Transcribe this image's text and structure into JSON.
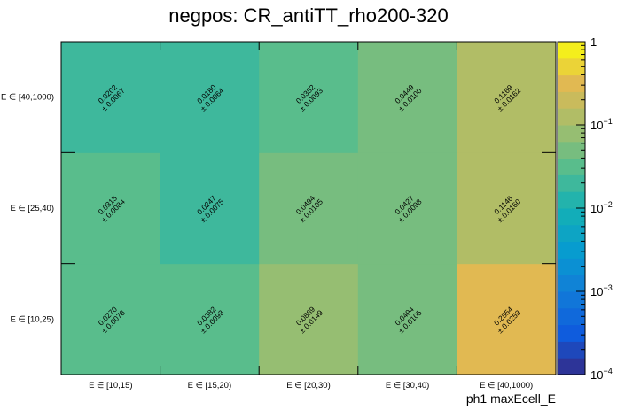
{
  "chart_data": {
    "type": "heatmap",
    "title": "negpos: CR_antiTT_rho200-320",
    "xlabel": "ph1 maxEcell_E",
    "ylabel": "",
    "x_categories": [
      "E ∈ [10,15)",
      "E ∈ [15,20)",
      "E ∈ [20,30)",
      "E ∈ [30,40)",
      "E ∈ [40,1000)"
    ],
    "y_categories": [
      "E ∈ [10,25)",
      "E ∈ [25,40)",
      "E ∈ [40,1000)"
    ],
    "values": [
      [
        0.027,
        0.0382,
        0.0889,
        0.0494,
        0.2854
      ],
      [
        0.0315,
        0.0247,
        0.0494,
        0.0427,
        0.1146
      ],
      [
        0.0202,
        0.018,
        0.0382,
        0.0449,
        0.1169
      ]
    ],
    "errors": [
      [
        0.0078,
        0.0093,
        0.0149,
        0.0105,
        0.0253
      ],
      [
        0.0084,
        0.0075,
        0.0105,
        0.0098,
        0.016
      ],
      [
        0.0067,
        0.0064,
        0.0093,
        0.01,
        0.0162
      ]
    ],
    "value_labels": [
      [
        "0.0270",
        "0.0382",
        "0.0889",
        "0.0494",
        "0.2854"
      ],
      [
        "0.0315",
        "0.0247",
        "0.0494",
        "0.0427",
        "0.1146"
      ],
      [
        "0.0202",
        "0.0180",
        "0.0382",
        "0.0449",
        "0.1169"
      ]
    ],
    "error_labels": [
      [
        "± 0.0078",
        "± 0.0093",
        "± 0.0149",
        "± 0.0105",
        "± 0.0253"
      ],
      [
        "± 0.0084",
        "± 0.0075",
        "± 0.0105",
        "± 0.0098",
        "± 0.0160"
      ],
      [
        "± 0.0067",
        "± 0.0064",
        "± 0.0093",
        "± 0.0100",
        "± 0.0162"
      ]
    ],
    "zscale": "log",
    "zlim": [
      0.0001,
      1
    ],
    "colorbar_ticks": [
      {
        "value": 1,
        "base": "1",
        "exp": ""
      },
      {
        "value": 0.1,
        "base": "10",
        "exp": "−1"
      },
      {
        "value": 0.01,
        "base": "10",
        "exp": "−2"
      },
      {
        "value": 0.001,
        "base": "10",
        "exp": "−3"
      },
      {
        "value": 0.0001,
        "base": "10",
        "exp": "−4"
      }
    ],
    "colorbar_position": "right",
    "grid": false
  }
}
